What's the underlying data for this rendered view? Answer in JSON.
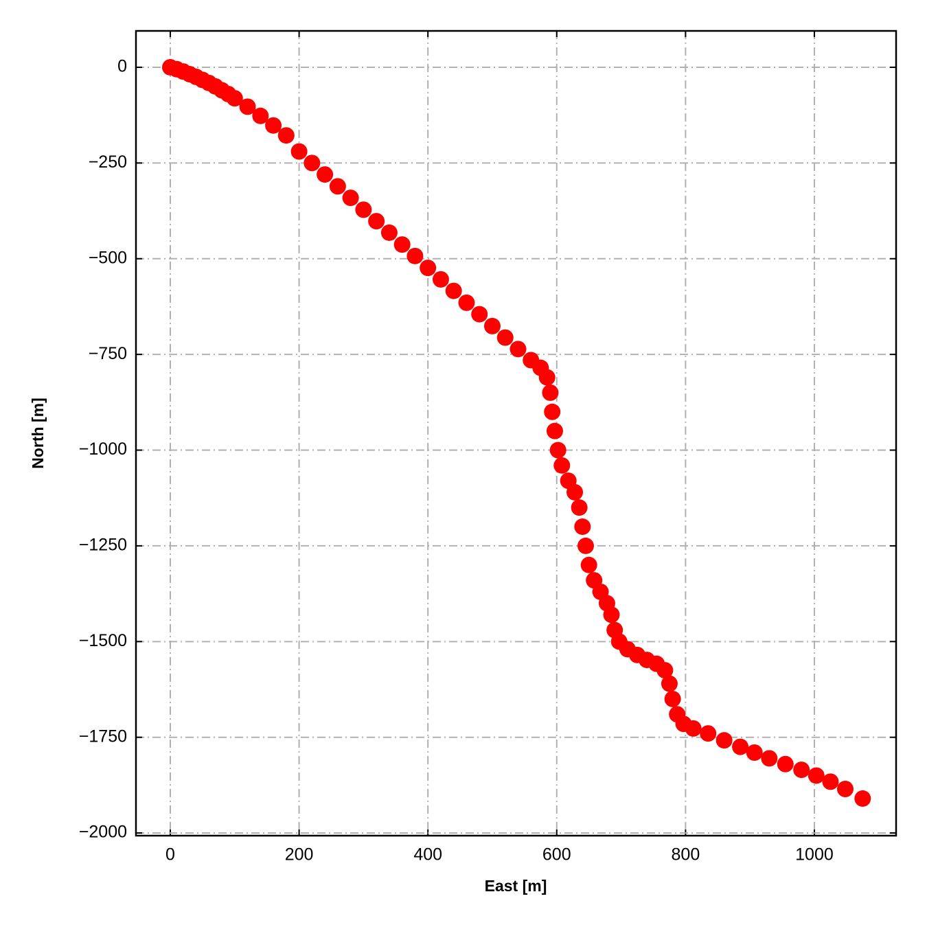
{
  "chart_data": {
    "type": "scatter",
    "xlabel": "East [m]",
    "ylabel": "North [m]",
    "xlim": [
      -53.3,
      1126.9
    ],
    "ylim": [
      -2007,
      95
    ],
    "xticks": [
      0,
      200,
      400,
      600,
      800,
      1000
    ],
    "yticks": [
      0,
      {
        "value": -250,
        "label": "−250"
      },
      {
        "value": -500,
        "label": "−500"
      },
      {
        "value": -750,
        "label": "−750"
      },
      {
        "value": -1000,
        "label": "−1000"
      },
      {
        "value": -1250,
        "label": "−1250"
      },
      {
        "value": -1500,
        "label": "−1500"
      },
      {
        "value": -1750,
        "label": "−1750"
      },
      {
        "value": -2000,
        "label": "−2000"
      }
    ],
    "grid": true,
    "series": [
      {
        "color": "#ff0000",
        "x": [
          0,
          10,
          20,
          30,
          40,
          50,
          60,
          70,
          80,
          90,
          100,
          120,
          140,
          160,
          180,
          200,
          220,
          240,
          260,
          280,
          300,
          320,
          340,
          360,
          380,
          400,
          420,
          440,
          460,
          480,
          500,
          520,
          540,
          560,
          575,
          585,
          590,
          593,
          597,
          602,
          608,
          618,
          628,
          635,
          640,
          645,
          650,
          658,
          668,
          678,
          685,
          690,
          697,
          710,
          725,
          740,
          755,
          768,
          775,
          780,
          787,
          797,
          812,
          835,
          860,
          885,
          907,
          930,
          955,
          980,
          1003,
          1025,
          1048,
          1075
        ],
        "values": [
          0,
          -5,
          -11,
          -18,
          -25,
          -33,
          -41,
          -50,
          -60,
          -70,
          -81,
          -103,
          -127,
          -152,
          -178,
          -220,
          -250,
          -280,
          -311,
          -341,
          -372,
          -402,
          -432,
          -463,
          -493,
          -524,
          -554,
          -584,
          -615,
          -645,
          -676,
          -706,
          -736,
          -765,
          -785,
          -810,
          -850,
          -900,
          -950,
          -1000,
          -1040,
          -1080,
          -1110,
          -1150,
          -1200,
          -1250,
          -1300,
          -1340,
          -1370,
          -1400,
          -1430,
          -1470,
          -1500,
          -1520,
          -1535,
          -1548,
          -1558,
          -1575,
          -1610,
          -1650,
          -1690,
          -1715,
          -1727,
          -1740,
          -1758,
          -1775,
          -1790,
          -1805,
          -1820,
          -1835,
          -1850,
          -1866,
          -1885,
          -1910
        ]
      }
    ]
  }
}
